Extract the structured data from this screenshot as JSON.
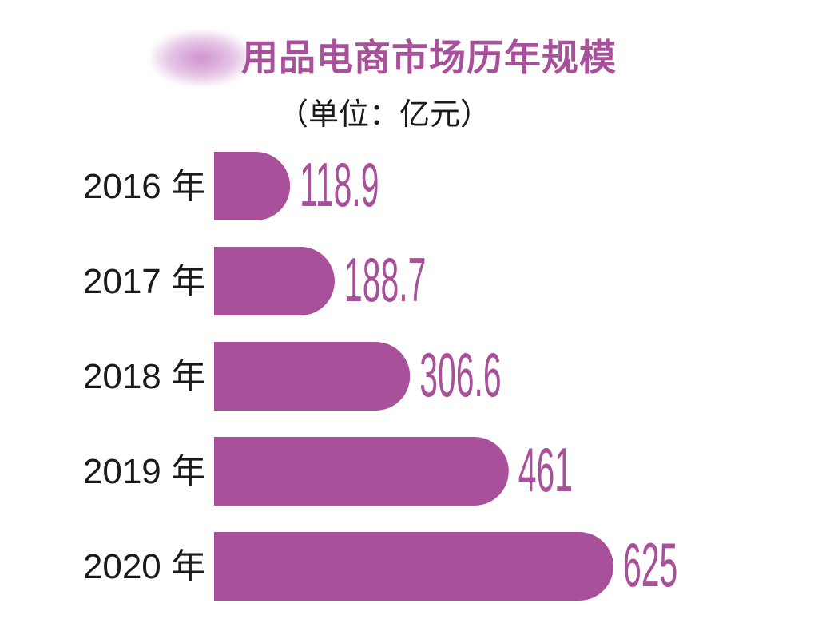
{
  "title": "用品电商市场历年规模",
  "subtitle": "（单位：亿元）",
  "chart_data": {
    "type": "bar",
    "orientation": "horizontal",
    "title": "用品电商市场历年规模",
    "subtitle": "（单位：亿元）",
    "categories": [
      "2016 年",
      "2017 年",
      "2018 年",
      "2019 年",
      "2020 年"
    ],
    "values": [
      118.9,
      188.7,
      306.6,
      461,
      625
    ],
    "value_labels": [
      "118.9",
      "188.7",
      "306.6",
      "461",
      "625"
    ],
    "bar_color": "#a8519a",
    "label_color": "#a8519a",
    "xlim": [
      0,
      625
    ],
    "grid": false,
    "legend": "none"
  }
}
